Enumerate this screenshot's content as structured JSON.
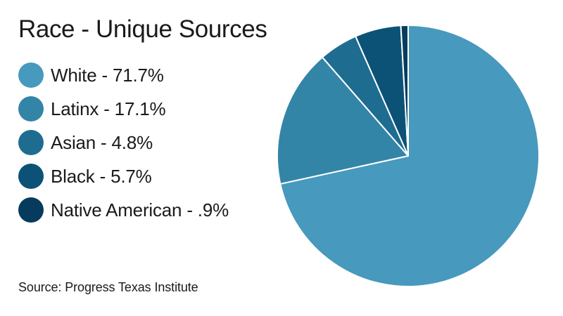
{
  "chart_data": {
    "type": "pie",
    "title": "Race - Unique Sources",
    "source": "Source: Progress Texas Institute",
    "slices": [
      {
        "name": "White",
        "value": 71.7,
        "label": "White - 71.7%",
        "color": "#4799bd"
      },
      {
        "name": "Latinx",
        "value": 17.1,
        "label": "Latinx - 17.1%",
        "color": "#3385a8"
      },
      {
        "name": "Asian",
        "value": 4.8,
        "label": "Asian - 4.8%",
        "color": "#1f6c91"
      },
      {
        "name": "Black",
        "value": 5.7,
        "label": "Black - 5.7%",
        "color": "#0b5276"
      },
      {
        "name": "Native American",
        "value": 0.9,
        "label": "Native American - .9%",
        "color": "#063b5e"
      }
    ],
    "slice_stroke_color": "#ffffff"
  }
}
